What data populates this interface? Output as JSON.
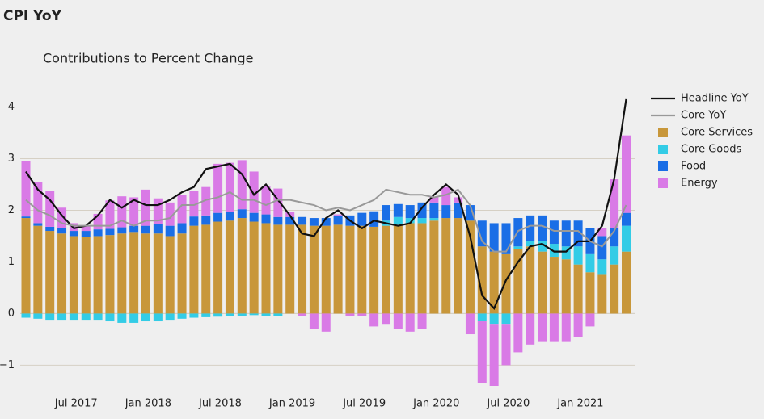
{
  "chart_data": {
    "type": "stacked_bar_line",
    "title": "CPI YoY",
    "subtitle": "Contributions to Percent Change",
    "categories": [
      null,
      null,
      null,
      null,
      null,
      "Jul 2017",
      null,
      null,
      null,
      null,
      null,
      "Jan 2018",
      null,
      null,
      null,
      null,
      null,
      "Jul 2018",
      null,
      null,
      null,
      null,
      null,
      "Jan 2019",
      null,
      null,
      null,
      null,
      null,
      "Jul 2019",
      null,
      null,
      null,
      null,
      null,
      "Jan 2020",
      null,
      null,
      null,
      null,
      null,
      "Jul 2020",
      null,
      null,
      null,
      null,
      null,
      "Jan 2021",
      null,
      null,
      null
    ],
    "ylim": [
      -1.4,
      4.5
    ],
    "yticks": [
      {
        "value": -1,
        "label": "−1"
      },
      0,
      1,
      2,
      3,
      4
    ],
    "grid": true,
    "series": [
      {
        "name": "Headline YoY",
        "kind": "line",
        "color": "#111111",
        "values": [
          2.75,
          2.4,
          2.2,
          1.9,
          1.65,
          1.7,
          1.9,
          2.2,
          2.05,
          2.2,
          2.1,
          2.1,
          2.2,
          2.35,
          2.45,
          2.8,
          2.85,
          2.9,
          2.7,
          2.3,
          2.5,
          2.2,
          1.9,
          1.55,
          1.5,
          1.85,
          2.0,
          1.8,
          1.65,
          1.8,
          1.75,
          1.7,
          1.75,
          2.05,
          2.3,
          2.5,
          2.3,
          1.5,
          0.35,
          0.1,
          0.65,
          1.0,
          1.3,
          1.35,
          1.2,
          1.2,
          1.4,
          1.4,
          1.7,
          2.6,
          4.15
        ]
      },
      {
        "name": "Core YoY",
        "kind": "line",
        "color": "#999999",
        "values": [
          2.2,
          2.0,
          1.9,
          1.75,
          1.7,
          1.7,
          1.7,
          1.7,
          1.8,
          1.7,
          1.8,
          1.8,
          1.85,
          2.1,
          2.1,
          2.2,
          2.25,
          2.35,
          2.2,
          2.2,
          2.1,
          2.2,
          2.2,
          2.15,
          2.1,
          2.0,
          2.05,
          2.0,
          2.1,
          2.2,
          2.4,
          2.35,
          2.3,
          2.3,
          2.25,
          2.3,
          2.4,
          2.1,
          1.4,
          1.2,
          1.2,
          1.6,
          1.7,
          1.7,
          1.6,
          1.6,
          1.6,
          1.4,
          1.3,
          1.6,
          2.1
        ]
      },
      {
        "name": "Core Services",
        "kind": "bar",
        "color": "#c8973a",
        "values": [
          1.85,
          1.7,
          1.6,
          1.55,
          1.5,
          1.48,
          1.5,
          1.52,
          1.55,
          1.58,
          1.55,
          1.55,
          1.5,
          1.55,
          1.7,
          1.72,
          1.78,
          1.8,
          1.85,
          1.78,
          1.75,
          1.72,
          1.72,
          1.72,
          1.7,
          1.7,
          1.72,
          1.7,
          1.7,
          1.68,
          1.7,
          1.72,
          1.75,
          1.75,
          1.8,
          1.85,
          1.85,
          1.8,
          1.3,
          1.2,
          1.15,
          1.25,
          1.3,
          1.2,
          1.1,
          1.05,
          0.95,
          0.8,
          0.75,
          0.95,
          1.2
        ]
      },
      {
        "name": "Core Goods",
        "kind": "bar",
        "color": "#33cce6",
        "values": [
          -0.08,
          -0.1,
          -0.12,
          -0.12,
          -0.12,
          -0.12,
          -0.12,
          -0.15,
          -0.18,
          -0.18,
          -0.15,
          -0.15,
          -0.12,
          -0.1,
          -0.08,
          -0.07,
          -0.06,
          -0.05,
          -0.04,
          -0.03,
          -0.04,
          -0.05,
          0,
          0,
          0,
          0,
          0,
          0,
          0,
          0,
          0.1,
          0.15,
          0.1,
          0.1,
          0.05,
          0,
          0,
          0,
          -0.15,
          -0.2,
          -0.2,
          0.05,
          0.1,
          0.2,
          0.25,
          0.25,
          0.35,
          0.35,
          0.3,
          0.35,
          0.5
        ]
      },
      {
        "name": "Food",
        "kind": "bar",
        "color": "#1a6ee6",
        "values": [
          0.03,
          0.05,
          0.08,
          0.1,
          0.1,
          0.12,
          0.13,
          0.12,
          0.12,
          0.12,
          0.15,
          0.18,
          0.2,
          0.2,
          0.18,
          0.18,
          0.17,
          0.17,
          0.17,
          0.17,
          0.17,
          0.15,
          0.15,
          0.15,
          0.15,
          0.15,
          0.18,
          0.2,
          0.25,
          0.3,
          0.3,
          0.25,
          0.25,
          0.3,
          0.3,
          0.25,
          0.3,
          0.3,
          0.5,
          0.55,
          0.6,
          0.55,
          0.5,
          0.5,
          0.45,
          0.5,
          0.5,
          0.5,
          0.45,
          0.35,
          0.25
        ]
      },
      {
        "name": "Energy",
        "kind": "bar",
        "color": "#d97ae6",
        "values": [
          1.07,
          0.8,
          0.7,
          0.4,
          0.15,
          0.1,
          0.3,
          0.55,
          0.6,
          0.55,
          0.7,
          0.5,
          0.45,
          0.55,
          0.5,
          0.55,
          0.95,
          0.95,
          0.95,
          0.8,
          0.55,
          0.55,
          0.1,
          -0.05,
          -0.3,
          -0.35,
          0.02,
          -0.05,
          -0.05,
          -0.25,
          -0.2,
          -0.3,
          -0.35,
          -0.3,
          0.1,
          0.35,
          0.1,
          -0.4,
          -1.2,
          -1.2,
          -0.8,
          -0.75,
          -0.6,
          -0.55,
          -0.55,
          -0.55,
          -0.45,
          -0.25,
          0.15,
          0.95,
          1.5
        ]
      }
    ]
  }
}
